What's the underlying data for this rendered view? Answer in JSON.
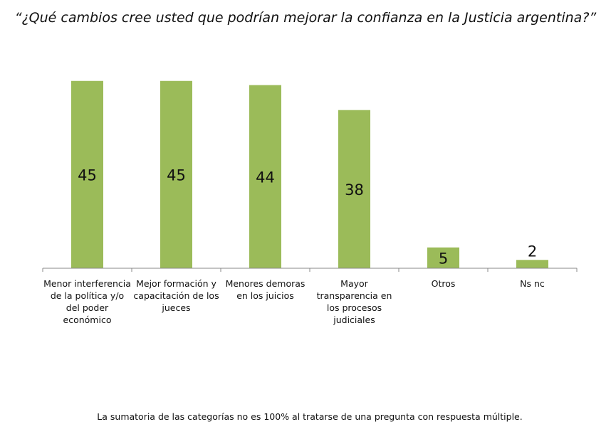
{
  "title": "“¿Qué cambios cree usted que podrían mejorar la confianza en la Justicia argentina?”",
  "footnote": "La sumatoria de las categorías no es 100% al tratarse de una pregunta con respuesta múltiple.",
  "colors": {
    "bar": "#9bbb59",
    "axis": "#888888",
    "text": "#111111"
  },
  "chart_data": {
    "type": "bar",
    "categories": [
      "Menor interferencia de la política y/o del poder económico",
      "Mejor formación y capacitación de los jueces",
      "Menores demoras en los juicios",
      "Mayor transparencia en los procesos judiciales",
      "Otros",
      "Ns nc"
    ],
    "values": [
      45,
      45,
      44,
      38,
      5,
      2
    ],
    "data_labels": [
      "45",
      "45",
      "44",
      "38",
      "5",
      "2"
    ],
    "ylim": [
      0,
      50
    ],
    "grid": false,
    "legend": "none"
  }
}
